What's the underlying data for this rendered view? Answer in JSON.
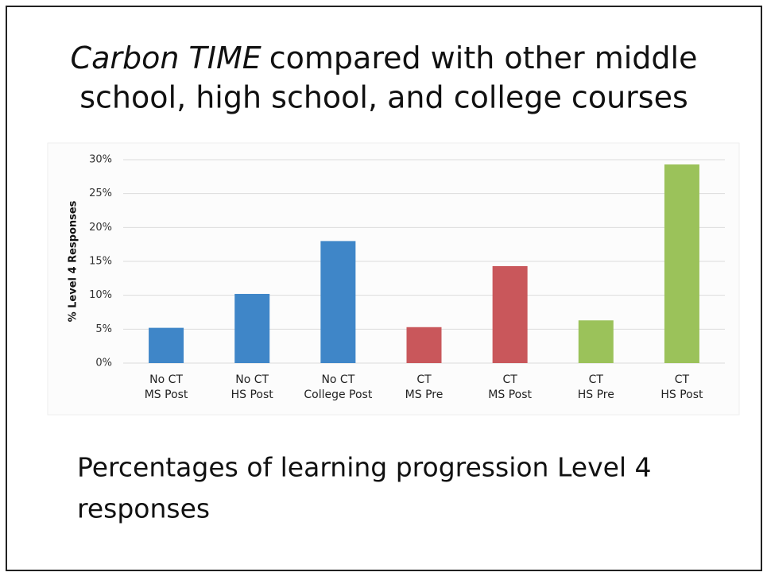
{
  "chart_data": {
    "type": "bar",
    "title": {
      "italic": "Carbon TIME",
      "lines": [
        "compared with other middle",
        "school, high school, and college courses"
      ]
    },
    "y_label": "% Level 4 Responses",
    "categories": [
      [
        "No CT",
        "MS Post"
      ],
      [
        "No CT",
        "HS Post"
      ],
      [
        "No CT",
        "College Post"
      ],
      [
        "CT",
        "MS Pre"
      ],
      [
        "CT",
        "MS Post"
      ],
      [
        "CT",
        "HS Pre"
      ],
      [
        "CT",
        "HS Post"
      ]
    ],
    "values": [
      5.2,
      10.2,
      18,
      5.3,
      14.3,
      6.3,
      29.3
    ],
    "colors": [
      "#3f86c8",
      "#3f86c8",
      "#3f86c8",
      "#c9575b",
      "#c9575b",
      "#9bc25a",
      "#9bc25a"
    ],
    "ylim": [
      0,
      30
    ],
    "yticks": [
      {
        "value": 0,
        "label": "0%"
      },
      {
        "value": 5,
        "label": "5%"
      },
      {
        "value": 10,
        "label": "10%"
      },
      {
        "value": 15,
        "label": "15%"
      },
      {
        "value": 20,
        "label": "20%"
      },
      {
        "value": 25,
        "label": "25%"
      },
      {
        "value": 30,
        "label": "30%"
      }
    ],
    "grid": true,
    "caption": [
      "Percentages of learning progression Level 4",
      "responses"
    ]
  }
}
